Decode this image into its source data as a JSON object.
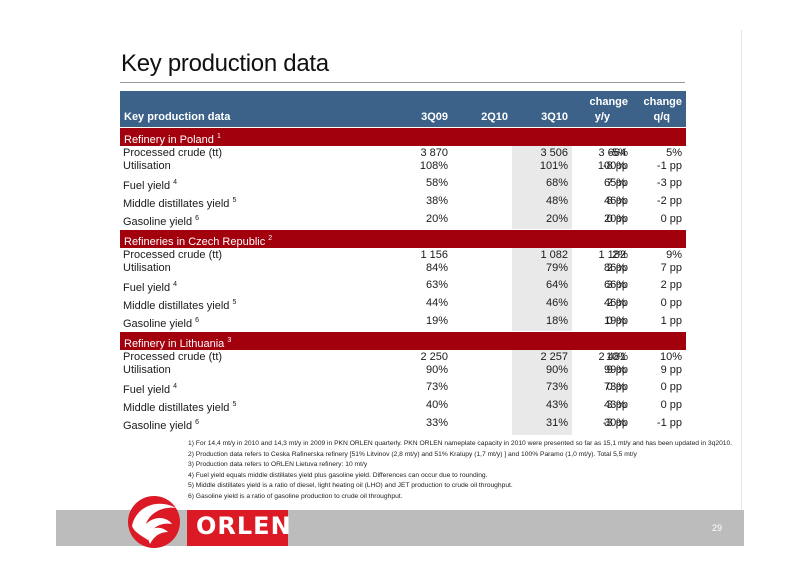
{
  "title": "Key production data",
  "header": {
    "label": "Key production data",
    "col1": "3Q09",
    "col2": "2Q10",
    "col3": "3Q10",
    "col4_top": "change",
    "col4_bottom": "y/y",
    "col5_top": "change",
    "col5_bottom": "q/q"
  },
  "sections": [
    {
      "name": "Refinery in Poland",
      "note": "1",
      "rows": [
        {
          "label": "Processed crude (tt)",
          "note": "",
          "v1": "3 870",
          "v2": "3 506",
          "v3": "3 664",
          "yy": "-5%",
          "qq": "5%"
        },
        {
          "label": "Utilisation",
          "note": "",
          "v1": "108%",
          "v2": "101%",
          "v3": "100%",
          "yy": "-8 pp",
          "qq": "-1 pp"
        },
        {
          "label": "Fuel yield",
          "note": "4",
          "v1": "58%",
          "v2": "68%",
          "v3": "65%",
          "yy": "7 pp",
          "qq": "-3 pp"
        },
        {
          "label": "Middle distillates yield",
          "note": "5",
          "v1": "38%",
          "v2": "48%",
          "v3": "46%",
          "yy": "8 pp",
          "qq": "-2 pp"
        },
        {
          "label": "Gasoline yield",
          "note": "6",
          "v1": "20%",
          "v2": "20%",
          "v3": "20%",
          "yy": "0 pp",
          "qq": "0 pp"
        }
      ]
    },
    {
      "name": "Refineries in Czech Republic",
      "note": "2",
      "rows": [
        {
          "label": "Processed crude (tt)",
          "note": "",
          "v1": "1 156",
          "v2": "1 082",
          "v3": "1 182",
          "yy": "2%",
          "qq": "9%"
        },
        {
          "label": "Utilisation",
          "note": "",
          "v1": "84%",
          "v2": "79%",
          "v3": "86%",
          "yy": "2 pp",
          "qq": "7 pp"
        },
        {
          "label": "Fuel yield",
          "note": "4",
          "v1": "63%",
          "v2": "64%",
          "v3": "66%",
          "yy": "3 pp",
          "qq": "2 pp"
        },
        {
          "label": "Middle distillates yield",
          "note": "5",
          "v1": "44%",
          "v2": "46%",
          "v3": "46%",
          "yy": "2 pp",
          "qq": "0 pp"
        },
        {
          "label": "Gasoline yield",
          "note": "6",
          "v1": "19%",
          "v2": "18%",
          "v3": "19%",
          "yy": "0 pp",
          "qq": "1 pp"
        }
      ]
    },
    {
      "name": "Refinery in Lithuania",
      "note": "3",
      "rows": [
        {
          "label": "Processed crude (tt)",
          "note": "",
          "v1": "2 250",
          "v2": "2 257",
          "v3": "2 481",
          "yy": "10%",
          "qq": "10%"
        },
        {
          "label": "Utilisation",
          "note": "",
          "v1": "90%",
          "v2": "90%",
          "v3": "99%",
          "yy": "9 pp",
          "qq": "9 pp"
        },
        {
          "label": "Fuel yield",
          "note": "4",
          "v1": "73%",
          "v2": "73%",
          "v3": "73%",
          "yy": "0 pp",
          "qq": "0 pp"
        },
        {
          "label": "Middle distillates yield",
          "note": "5",
          "v1": "40%",
          "v2": "43%",
          "v3": "43%",
          "yy": "3 pp",
          "qq": "0 pp"
        },
        {
          "label": "Gasoline yield",
          "note": "6",
          "v1": "33%",
          "v2": "31%",
          "v3": "30%",
          "yy": "-3 pp",
          "qq": "-1 pp"
        }
      ]
    }
  ],
  "footnotes": [
    "1) For 14,4 mt/y in 2010 and 14,3 mt/y in 2009 in PKN ORLEN quarterly. PKN ORLEN nameplate capacity in 2010 were presented so far as 15,1 mt/y and has been updated in 3q2010.",
    "2) Production data refers to Ceska Rafinerska refinery [51% Litvinov (2,8 mt/y) and 51% Kralupy (1,7 mt/y) ] and 100% Paramo (1,0 mt/y). Total 5,5 mt/y",
    "3) Production data refers to ORLEN Lietuva refinery: 10 mt/y",
    "4) Fuel yield equals middle distillates yield plus gasoline yield. Differences can occur due to rounding.",
    "5) Middle distillates yield is a ratio of diesel, light heating oil (LHO) and JET production to crude oil throughput.",
    "6) Gasoline yield is a ratio of gasoline production to crude oil throughput."
  ],
  "footer": {
    "brand": "ORLEN",
    "page": "29",
    "logo_icon": "orlen-eagle-logo-icon"
  },
  "colors": {
    "header_blue": "#3c6289",
    "section_red": "#a3000d",
    "brand_red": "#dc1a25",
    "footer_gray": "#bcbcbc"
  }
}
